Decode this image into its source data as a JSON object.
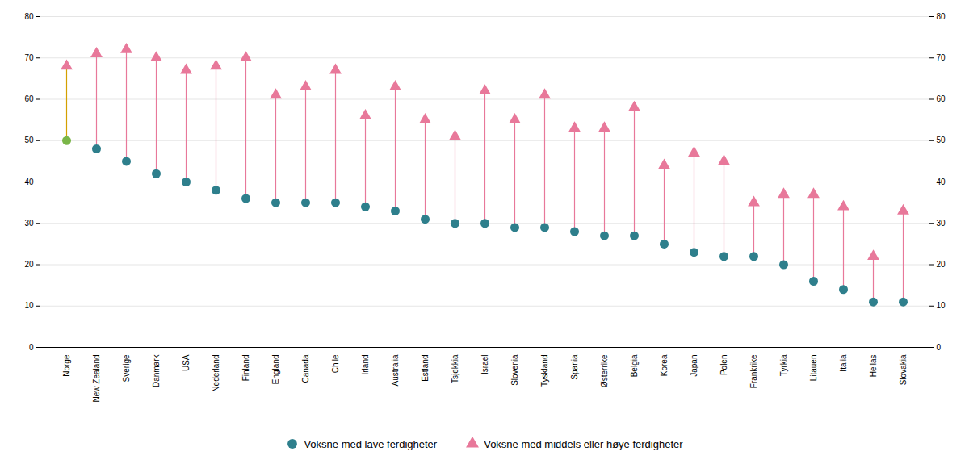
{
  "chart_data": {
    "type": "dumbbell",
    "categories": [
      "Norge",
      "New Zealand",
      "Sverige",
      "Danmark",
      "USA",
      "Nederland",
      "Finland",
      "England",
      "Canada",
      "Chile",
      "Irland",
      "Australia",
      "Estland",
      "Tsjekkia",
      "Israel",
      "Slovenia",
      "Tyskland",
      "Spania",
      "Østerrike",
      "Belgia",
      "Korea",
      "Japan",
      "Polen",
      "Frankrike",
      "Tyrkia",
      "Litauen",
      "Italia",
      "Hellas",
      "Slovakia"
    ],
    "series": [
      {
        "name": "Voksne med lave ferdigheter",
        "color": "#2e7f8c",
        "marker": "circle",
        "colors": [
          "#7ab648",
          "#2e7f8c",
          "#2e7f8c",
          "#2e7f8c",
          "#2e7f8c",
          "#2e7f8c",
          "#2e7f8c",
          "#2e7f8c",
          "#2e7f8c",
          "#2e7f8c",
          "#2e7f8c",
          "#2e7f8c",
          "#2e7f8c",
          "#2e7f8c",
          "#2e7f8c",
          "#2e7f8c",
          "#2e7f8c",
          "#2e7f8c",
          "#2e7f8c",
          "#2e7f8c",
          "#2e7f8c",
          "#2e7f8c",
          "#2e7f8c",
          "#2e7f8c",
          "#2e7f8c",
          "#2e7f8c",
          "#2e7f8c",
          "#2e7f8c",
          "#2e7f8c"
        ],
        "values": [
          50,
          48,
          45,
          42,
          40,
          38,
          36,
          35,
          35,
          35,
          34,
          33,
          31,
          30,
          30,
          29,
          29,
          28,
          27,
          27,
          25,
          23,
          22,
          22,
          20,
          16,
          14,
          11,
          11
        ]
      },
      {
        "name": "Voksne med middels eller høye ferdigheter",
        "color": "#e8789a",
        "marker": "triangle",
        "values": [
          68,
          71,
          72,
          70,
          67,
          68,
          70,
          61,
          63,
          67,
          56,
          63,
          55,
          51,
          62,
          55,
          61,
          53,
          53,
          58,
          44,
          47,
          45,
          35,
          37,
          37,
          34,
          22,
          33
        ]
      }
    ],
    "colors": [
      "#d4a000",
      "#e8789a",
      "#e8789a",
      "#e8789a",
      "#e8789a",
      "#e8789a",
      "#e8789a",
      "#e8789a",
      "#e8789a",
      "#e8789a",
      "#e8789a",
      "#e8789a",
      "#e8789a",
      "#e8789a",
      "#e8789a",
      "#e8789a",
      "#e8789a",
      "#e8789a",
      "#e8789a",
      "#e8789a",
      "#e8789a",
      "#e8789a",
      "#e8789a",
      "#e8789a",
      "#e8789a",
      "#e8789a",
      "#e8789a",
      "#e8789a",
      "#e8789a"
    ],
    "ylim": [
      0,
      80
    ],
    "yticks": [
      0,
      10,
      20,
      30,
      40,
      50,
      60,
      70,
      80
    ],
    "y2lim": [
      0,
      80
    ],
    "y2ticks": [
      0,
      10,
      20,
      30,
      40,
      50,
      60,
      70,
      80
    ],
    "grid": true,
    "legend": "bottom"
  }
}
